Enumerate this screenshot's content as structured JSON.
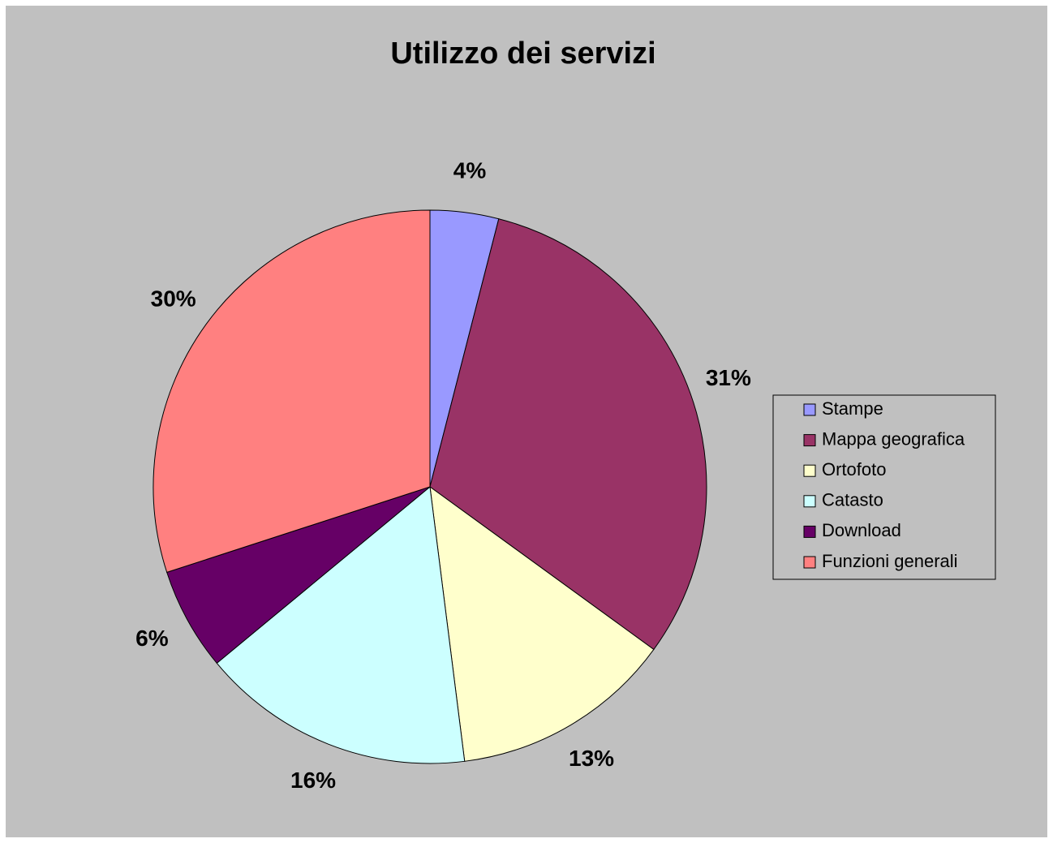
{
  "chart_data": {
    "type": "pie",
    "title": "Utilizzo dei servizi",
    "categories": [
      "Stampe",
      "Mappa geografica",
      "Ortofoto",
      "Catasto",
      "Download",
      "Funzioni generali"
    ],
    "values": [
      4,
      31,
      13,
      16,
      6,
      30
    ],
    "value_labels": [
      "4%",
      "31%",
      "13%",
      "16%",
      "6%",
      "30%"
    ],
    "colors": [
      "#9999ff",
      "#993366",
      "#ffffcc",
      "#ccffff",
      "#660066",
      "#ff8080"
    ],
    "legend": "right"
  }
}
